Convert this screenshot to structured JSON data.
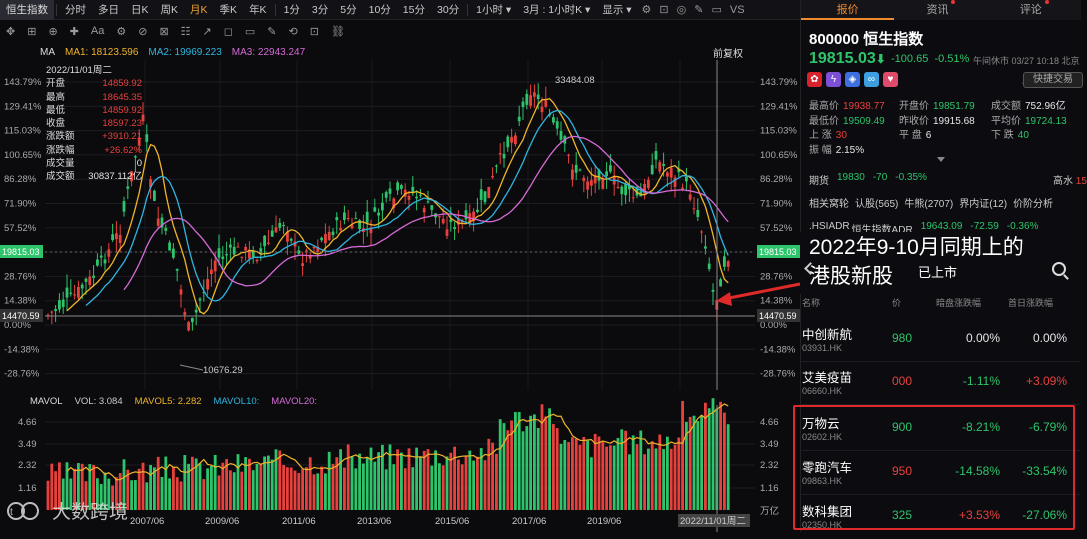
{
  "toolbar": {
    "tabs": [
      "恒生指数",
      "分时",
      "多日",
      "日K",
      "周K",
      "月K",
      "季K",
      "年K",
      "1分",
      "3分",
      "5分",
      "10分",
      "15分",
      "30分",
      "1小时 ▾",
      "3月 : 1小时K ▾",
      "显示 ▾"
    ],
    "active_index": 5,
    "icons": [
      "settings-icon",
      "expand-icon",
      "camera-icon",
      "pen-icon",
      "layout-icon",
      "vs-label"
    ],
    "vs_label": "VS"
  },
  "toolbar2": {
    "items": [
      "✥",
      "⊞",
      "⊕",
      "✚",
      "Aa",
      "⚙",
      "⊘",
      "⊠",
      "☷",
      "↗",
      "◻",
      "▭",
      "✎",
      "⟲",
      "⊡",
      "⛓"
    ]
  },
  "ma": {
    "label": "MA",
    "ma1": "MA1: 18123.596",
    "ma2": "MA2: 19969.223",
    "ma3": "MA3: 22943.247",
    "colors": {
      "ma1": "#f0b429",
      "ma2": "#2fb5e0",
      "ma3": "#d66ad6"
    },
    "right_label": "前复权"
  },
  "infobox": {
    "date": "2022/11/01周二",
    "rows": [
      {
        "k": "开盘",
        "v": "14859.92",
        "c": "red"
      },
      {
        "k": "最高",
        "v": "18645.35",
        "c": "red"
      },
      {
        "k": "最低",
        "v": "14859.92",
        "c": "red"
      },
      {
        "k": "收盘",
        "v": "18597.23",
        "c": "red"
      },
      {
        "k": "涨跌额",
        "v": "+3910.21",
        "c": "red"
      },
      {
        "k": "涨跌幅",
        "v": "+26.62%",
        "c": "red"
      },
      {
        "k": "成交量",
        "v": "0",
        "c": "white"
      },
      {
        "k": "成交额",
        "v": "30837.112亿",
        "c": "white"
      }
    ]
  },
  "main_axis": {
    "left": [
      "143.79%",
      "129.41%",
      "115.03%",
      "100.65%",
      "86.28%",
      "71.90%",
      "57.52%",
      "43.14%",
      "28.76%",
      "14.38%",
      "0.00%",
      "-14.38%",
      "-28.76%"
    ],
    "right": [
      "143.79%",
      "129.41%",
      "115.03%",
      "100.65%",
      "86.28%",
      "71.90%",
      "57.52%",
      "43.14%",
      "28.76%",
      "14.38%",
      "0.00%",
      "-14.38%",
      "-28.76%"
    ],
    "current_left": "19815.03",
    "current_right": "19815.03",
    "cross_left": "14470.59",
    "cross_right": "14470.59",
    "high_label": "33484.08",
    "low_label": "10676.29"
  },
  "vol": {
    "label": "MAVOL",
    "vol": "VOL: 3.084",
    "mavol5": "MAVOL5: 2.282",
    "mavol10": "MAVOL10:",
    "mavol20": "MAVOL20:",
    "axis_left": [
      "4.66",
      "3.49",
      "2.32",
      "1.16"
    ],
    "axis_right": [
      "4.66",
      "3.49",
      "2.32",
      "1.16",
      "万亿"
    ],
    "x_labels": [
      "2007/06",
      "2009/06",
      "2011/06",
      "2013/06",
      "2015/06",
      "2017/06",
      "2019/06",
      "2022/11/01周二"
    ]
  },
  "right_panel": {
    "tabs": [
      {
        "label": "报价",
        "dot": false
      },
      {
        "label": "资讯",
        "dot": true
      },
      {
        "label": "评论",
        "dot": true
      }
    ],
    "code_name": "800000  恒生指数",
    "price": "19815.03",
    "arrow": "⬇",
    "change": "-100.65",
    "pct": "-0.51%",
    "time": "午间休市 03/27 10:18 北京",
    "quick_btn": "快捷交易",
    "quote": [
      {
        "k": "最高价",
        "v": "19938.77",
        "c": "red"
      },
      {
        "k": "开盘价",
        "v": "19851.79",
        "c": "green"
      },
      {
        "k": "成交额",
        "v": "752.96亿",
        "c": "white"
      },
      {
        "k": "最低价",
        "v": "19509.49",
        "c": "green"
      },
      {
        "k": "昨收价",
        "v": "19915.68",
        "c": "white"
      },
      {
        "k": "平均价",
        "v": "19724.13",
        "c": "green"
      },
      {
        "k": "上  涨",
        "v": "30",
        "c": "red"
      },
      {
        "k": "平  盘",
        "v": "6",
        "c": "white"
      },
      {
        "k": "下  跌",
        "v": "40",
        "c": "green"
      },
      {
        "k": "振  幅",
        "v": "2.15%",
        "c": "white"
      }
    ],
    "futures": {
      "label": "期货",
      "price": "19830",
      "chg": "-70",
      "pct": "-0.35%",
      "water_label": "高水",
      "water_val": "15"
    },
    "links": [
      "相关窝轮",
      "认股(565)",
      "牛熊(2707)",
      "界内证(12)",
      "价阶分析"
    ],
    "hsiadr": {
      "code": ".HSIADR",
      "name": "恒生指数ADR",
      "price": "19643.09",
      "chg": "-72.59",
      "pct": "-0.36%"
    },
    "overlay_title_line1": "2022年9-10月同期上的",
    "overlay_title_line2": "港股新股",
    "listed_label": "已上市",
    "list_headers": [
      "名称",
      "价",
      "暗盘涨跌幅",
      "首日涨跌幅"
    ],
    "stocks": [
      {
        "name": "中创新航",
        "code": "03931.HK",
        "price": "980",
        "c1": "0.00%",
        "c1c": "white",
        "c2": "0.00%",
        "c2c": "white",
        "pc": "green"
      },
      {
        "name": "艾美疫苗",
        "code": "06660.HK",
        "price": "000",
        "c1": "-1.11%",
        "c1c": "green",
        "c2": "+3.09%",
        "c2c": "red",
        "pc": "red"
      },
      {
        "name": "万物云",
        "code": "02602.HK",
        "price": "900",
        "c1": "-8.21%",
        "c1c": "green",
        "c2": "-6.79%",
        "c2c": "green",
        "pc": "green"
      },
      {
        "name": "零跑汽车",
        "code": "09863.HK",
        "price": "950",
        "c1": "-14.58%",
        "c1c": "green",
        "c2": "-33.54%",
        "c2c": "green",
        "pc": "red"
      },
      {
        "name": "数科集团",
        "code": "02350.HK",
        "price": "325",
        "c1": "+3.53%",
        "c1c": "red",
        "c2": "-27.06%",
        "c2c": "green",
        "pc": "green"
      }
    ]
  },
  "watermark": "大数跨境"
}
